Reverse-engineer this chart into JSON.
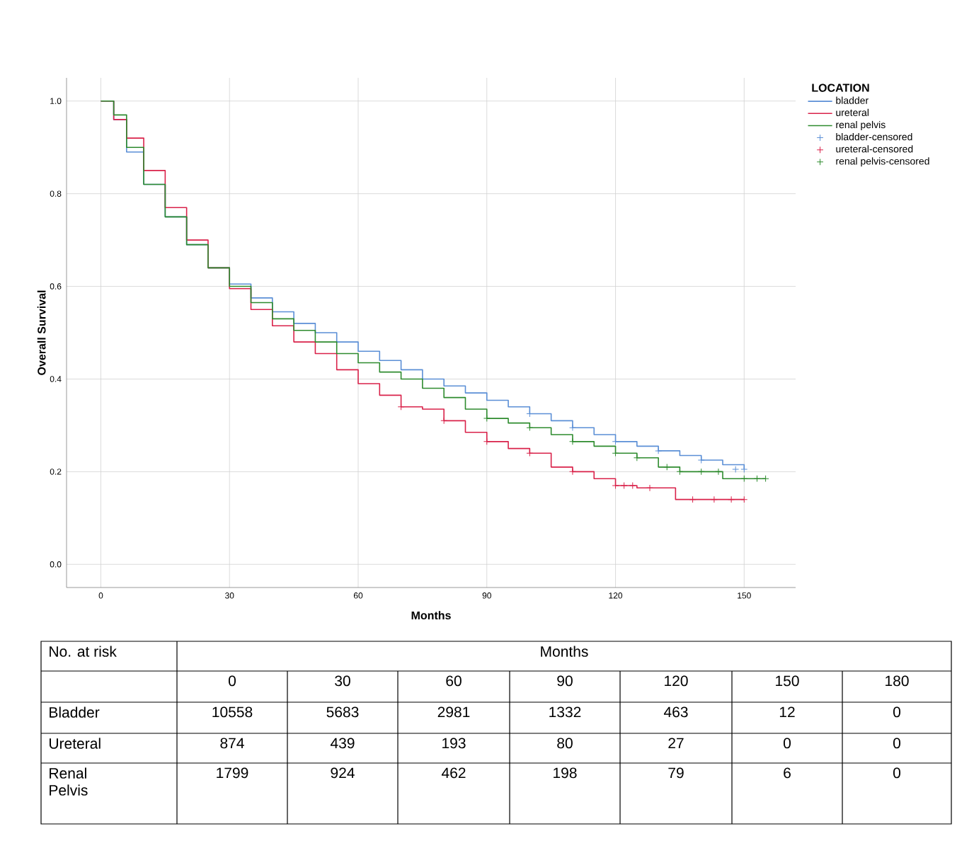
{
  "chart_data": {
    "type": "step",
    "xlabel": "Months",
    "ylabel": "Overall Survival",
    "legend_title": "LOCATION",
    "legend": "right",
    "grid": true,
    "xlim": [
      -8,
      162
    ],
    "ylim": [
      -0.05,
      1.05
    ],
    "xticks": [
      0,
      30,
      60,
      90,
      120,
      150
    ],
    "yticks": [
      {
        "value": 0,
        "label": "0.0"
      },
      0.2,
      0.4,
      0.6,
      0.8,
      {
        "value": 1,
        "label": "1.0"
      }
    ],
    "series": [
      {
        "name": "bladder",
        "color": "#5b8fd6",
        "marker": "none",
        "x": [
          0,
          3,
          6,
          10,
          15,
          20,
          25,
          30,
          35,
          40,
          45,
          50,
          55,
          60,
          65,
          70,
          75,
          80,
          85,
          90,
          95,
          100,
          105,
          110,
          115,
          120,
          125,
          130,
          135,
          140,
          145,
          150
        ],
        "values": [
          1.0,
          0.96,
          0.89,
          0.82,
          0.75,
          0.69,
          0.64,
          0.605,
          0.575,
          0.545,
          0.52,
          0.5,
          0.48,
          0.46,
          0.44,
          0.42,
          0.4,
          0.385,
          0.37,
          0.354,
          0.34,
          0.325,
          0.31,
          0.295,
          0.28,
          0.265,
          0.255,
          0.245,
          0.235,
          0.225,
          0.215,
          0.205
        ]
      },
      {
        "name": "ureteral",
        "color": "#d9224a",
        "marker": "none",
        "x": [
          0,
          3,
          6,
          10,
          15,
          20,
          25,
          30,
          35,
          40,
          45,
          50,
          55,
          60,
          65,
          70,
          75,
          80,
          85,
          90,
          95,
          100,
          105,
          110,
          115,
          120,
          125,
          134,
          150
        ],
        "values": [
          1.0,
          0.96,
          0.92,
          0.85,
          0.77,
          0.7,
          0.64,
          0.595,
          0.55,
          0.515,
          0.48,
          0.455,
          0.42,
          0.39,
          0.365,
          0.34,
          0.335,
          0.31,
          0.285,
          0.265,
          0.25,
          0.24,
          0.21,
          0.2,
          0.185,
          0.17,
          0.165,
          0.14,
          0.14
        ]
      },
      {
        "name": "renal pelvis",
        "color": "#2e8b2e",
        "marker": "none",
        "x": [
          0,
          3,
          6,
          10,
          15,
          20,
          25,
          30,
          35,
          40,
          45,
          50,
          55,
          60,
          65,
          70,
          75,
          80,
          85,
          90,
          95,
          100,
          105,
          110,
          115,
          120,
          125,
          130,
          135,
          145,
          155
        ],
        "values": [
          1.0,
          0.97,
          0.9,
          0.82,
          0.75,
          0.69,
          0.64,
          0.6,
          0.565,
          0.53,
          0.505,
          0.48,
          0.455,
          0.435,
          0.415,
          0.4,
          0.38,
          0.36,
          0.335,
          0.315,
          0.305,
          0.295,
          0.28,
          0.265,
          0.255,
          0.24,
          0.23,
          0.21,
          0.2,
          0.185,
          0.185
        ]
      },
      {
        "name": "bladder-censored",
        "type": "scatter",
        "color": "#5b8fd6",
        "marker": "cross",
        "x": [
          100,
          110,
          120,
          130,
          140,
          148,
          150
        ],
        "values": [
          0.325,
          0.295,
          0.265,
          0.245,
          0.225,
          0.205,
          0.205
        ]
      },
      {
        "name": "ureteral-censored",
        "type": "scatter",
        "color": "#d9224a",
        "marker": "cross",
        "x": [
          70,
          80,
          90,
          100,
          110,
          120,
          122,
          124,
          128,
          138,
          143,
          147,
          150
        ],
        "values": [
          0.34,
          0.31,
          0.265,
          0.24,
          0.2,
          0.17,
          0.17,
          0.17,
          0.165,
          0.14,
          0.14,
          0.14,
          0.14
        ]
      },
      {
        "name": "renal pelvis-censored",
        "type": "scatter",
        "color": "#2e8b2e",
        "marker": "cross",
        "x": [
          90,
          100,
          110,
          120,
          125,
          132,
          135,
          140,
          144,
          150,
          153,
          155
        ],
        "values": [
          0.315,
          0.295,
          0.265,
          0.24,
          0.23,
          0.21,
          0.2,
          0.2,
          0.2,
          0.185,
          0.185,
          0.185
        ]
      }
    ],
    "annotations": [
      "No. at risk",
      "Months",
      "0",
      "30",
      "60",
      "90",
      "120",
      "150",
      "180",
      "Bladder",
      "10558",
      "5683",
      "2981",
      "1332",
      "463",
      "12",
      "0",
      "Ureteral",
      "874",
      "439",
      "193",
      "80",
      "27",
      "0",
      "0",
      "Renal Pelvis",
      "1799",
      "924",
      "462",
      "198",
      "79",
      "6",
      "0"
    ]
  }
}
